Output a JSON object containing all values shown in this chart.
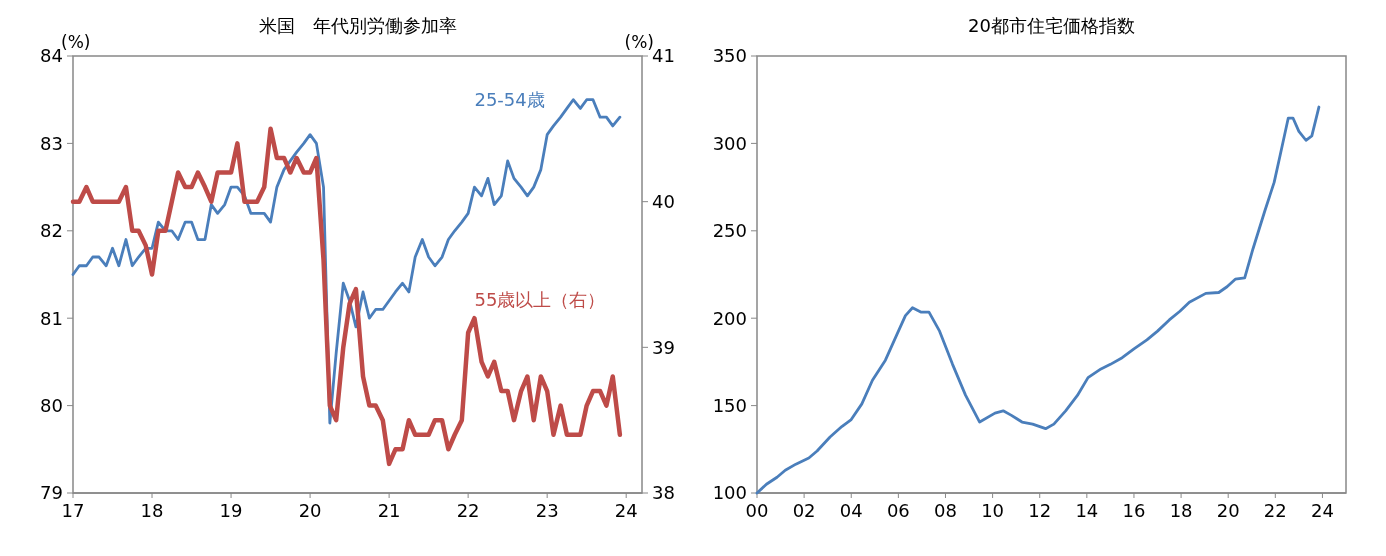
{
  "chart_data": [
    {
      "type": "line",
      "title": "米国　年代別労働参加率",
      "ylabel": "(%)",
      "y2label": "(%)",
      "grid": false,
      "x": [
        2017,
        2017.08,
        2017.17,
        2017.25,
        2017.33,
        2017.42,
        2017.5,
        2017.58,
        2017.67,
        2017.75,
        2017.83,
        2017.92,
        2018,
        2018.08,
        2018.17,
        2018.25,
        2018.33,
        2018.42,
        2018.5,
        2018.58,
        2018.67,
        2018.75,
        2018.83,
        2018.92,
        2019,
        2019.08,
        2019.17,
        2019.25,
        2019.33,
        2019.42,
        2019.5,
        2019.58,
        2019.67,
        2019.75,
        2019.83,
        2019.92,
        2020,
        2020.08,
        2020.17,
        2020.25,
        2020.33,
        2020.42,
        2020.5,
        2020.58,
        2020.67,
        2020.75,
        2020.83,
        2020.92,
        2021,
        2021.08,
        2021.17,
        2021.25,
        2021.33,
        2021.42,
        2021.5,
        2021.58,
        2021.67,
        2021.75,
        2021.83,
        2021.92,
        2022,
        2022.08,
        2022.17,
        2022.25,
        2022.33,
        2022.42,
        2022.5,
        2022.58,
        2022.67,
        2022.75,
        2022.83,
        2022.92,
        2023,
        2023.08,
        2023.17,
        2023.25,
        2023.33,
        2023.42,
        2023.5,
        2023.58,
        2023.67,
        2023.75,
        2023.83,
        2023.92
      ],
      "xlim": [
        2017,
        2024.2
      ],
      "xticks": [
        {
          "value": 2017,
          "label": "17"
        },
        {
          "value": 2018,
          "label": "18"
        },
        {
          "value": 2019,
          "label": "19"
        },
        {
          "value": 2020,
          "label": "20"
        },
        {
          "value": 2021,
          "label": "21"
        },
        {
          "value": 2022,
          "label": "22"
        },
        {
          "value": 2023,
          "label": "23"
        },
        {
          "value": 2024,
          "label": "24"
        }
      ],
      "ylim": [
        79,
        84
      ],
      "yticks": [
        79,
        80,
        81,
        82,
        83,
        84
      ],
      "y2lim": [
        38,
        41
      ],
      "y2ticks": [
        38,
        39,
        40,
        41
      ],
      "series": [
        {
          "name": "25-54歳",
          "color": "#4a7ebb",
          "values": [
            81.5,
            81.6,
            81.6,
            81.7,
            81.7,
            81.6,
            81.8,
            81.6,
            81.9,
            81.6,
            81.7,
            81.8,
            81.8,
            82.1,
            82.0,
            82.0,
            81.9,
            82.1,
            82.1,
            81.9,
            81.9,
            82.3,
            82.2,
            82.3,
            82.5,
            82.5,
            82.4,
            82.2,
            82.2,
            82.2,
            82.1,
            82.5,
            82.7,
            82.8,
            82.9,
            83.0,
            83.1,
            83.0,
            82.5,
            79.8,
            80.6,
            81.4,
            81.2,
            80.9,
            81.3,
            81.0,
            81.1,
            81.1,
            81.2,
            81.3,
            81.4,
            81.3,
            81.7,
            81.9,
            81.7,
            81.6,
            81.7,
            81.9,
            82.0,
            82.1,
            82.2,
            82.5,
            82.4,
            82.6,
            82.3,
            82.4,
            82.8,
            82.6,
            82.5,
            82.4,
            82.5,
            82.7,
            83.1,
            83.2,
            83.3,
            83.4,
            83.5,
            83.4,
            83.5,
            83.5,
            83.3,
            83.3,
            83.2,
            83.3
          ]
        },
        {
          "name": "55歳以上（右）",
          "color": "#be4b48",
          "axis": "y2",
          "values": [
            40.0,
            40.0,
            40.1,
            40.0,
            40.0,
            40.0,
            40.0,
            40.0,
            40.1,
            39.8,
            39.8,
            39.7,
            39.5,
            39.8,
            39.8,
            40.0,
            40.2,
            40.1,
            40.1,
            40.2,
            40.1,
            40.0,
            40.2,
            40.2,
            40.2,
            40.4,
            40.0,
            40.0,
            40.0,
            40.1,
            40.5,
            40.3,
            40.3,
            40.2,
            40.3,
            40.2,
            40.2,
            40.3,
            39.6,
            38.6,
            38.5,
            39.0,
            39.3,
            39.4,
            38.8,
            38.6,
            38.6,
            38.5,
            38.2,
            38.3,
            38.3,
            38.5,
            38.4,
            38.4,
            38.4,
            38.5,
            38.5,
            38.3,
            38.4,
            38.5,
            39.1,
            39.2,
            38.9,
            38.8,
            38.9,
            38.7,
            38.7,
            38.5,
            38.7,
            38.8,
            38.5,
            38.8,
            38.7,
            38.4,
            38.6,
            38.4,
            38.4,
            38.4,
            38.6,
            38.7,
            38.7,
            38.6,
            38.8,
            38.4
          ]
        }
      ]
    },
    {
      "type": "line",
      "title": "20都市住宅価格指数",
      "grid": false,
      "xlim": [
        2000,
        2025
      ],
      "xticks": [
        {
          "value": 2000,
          "label": "00"
        },
        {
          "value": 2002,
          "label": "02"
        },
        {
          "value": 2004,
          "label": "04"
        },
        {
          "value": 2006,
          "label": "06"
        },
        {
          "value": 2008,
          "label": "08"
        },
        {
          "value": 2010,
          "label": "10"
        },
        {
          "value": 2012,
          "label": "12"
        },
        {
          "value": 2014,
          "label": "14"
        },
        {
          "value": 2016,
          "label": "16"
        },
        {
          "value": 2018,
          "label": "18"
        },
        {
          "value": 2020,
          "label": "20"
        },
        {
          "value": 2022,
          "label": "22"
        },
        {
          "value": 2024,
          "label": "24"
        }
      ],
      "ylim": [
        100,
        350
      ],
      "yticks": [
        100,
        150,
        200,
        250,
        300,
        350
      ],
      "series": [
        {
          "color": "#4a7ebb",
          "x": [
            2000,
            2000.4,
            2000.85,
            2001.2,
            2001.65,
            2002.2,
            2002.55,
            2003.1,
            2003.6,
            2004,
            2004.45,
            2004.9,
            2005.45,
            2005.95,
            2006.3,
            2006.6,
            2006.95,
            2007.3,
            2007.75,
            2008.3,
            2008.85,
            2009.45,
            2010.1,
            2010.45,
            2010.8,
            2011.25,
            2011.7,
            2012.25,
            2012.6,
            2013.1,
            2013.6,
            2014.05,
            2014.6,
            2015,
            2015.5,
            2016,
            2016.55,
            2017,
            2017.5,
            2017.95,
            2018.35,
            2019.05,
            2019.6,
            2019.95,
            2020.3,
            2020.7,
            2021.05,
            2021.55,
            2021.95,
            2022.2,
            2022.55,
            2022.75,
            2023,
            2023.3,
            2023.55,
            2023.85
          ],
          "values": [
            100,
            105,
            109,
            113,
            116.5,
            120,
            124,
            132,
            138,
            142,
            151,
            164.5,
            176,
            191,
            201.5,
            206,
            203.5,
            203.5,
            192.6,
            173.6,
            156,
            140.6,
            145.7,
            147,
            144.4,
            140.6,
            139.4,
            136.8,
            139.4,
            147,
            155.8,
            166,
            171,
            173.6,
            177.4,
            182.5,
            187.6,
            192.6,
            199,
            204,
            209.1,
            214.2,
            214.7,
            218,
            222.3,
            223.1,
            239.6,
            261.2,
            277.7,
            292.9,
            314.5,
            314.5,
            306.9,
            301.8,
            304.3,
            320.8
          ]
        }
      ]
    }
  ]
}
